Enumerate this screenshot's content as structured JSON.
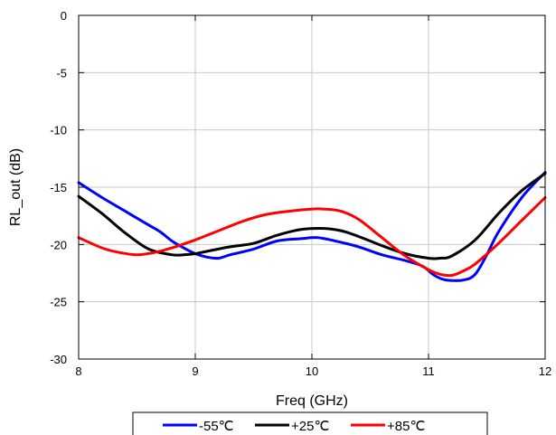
{
  "chart_data": {
    "type": "line",
    "title": "",
    "xlabel": "Freq (GHz)",
    "ylabel": "RL_out (dB)",
    "xlim": [
      8,
      12
    ],
    "ylim": [
      -30,
      0
    ],
    "xticks": [
      8,
      9,
      10,
      11,
      12
    ],
    "yticks": [
      0,
      -5,
      -10,
      -15,
      -20,
      -25,
      -30
    ],
    "xtick_labels": [
      "8",
      "9",
      "10",
      "11",
      "12"
    ],
    "ytick_labels": [
      "0",
      "-5",
      "-10",
      "-15",
      "-20",
      "-25",
      "-30"
    ],
    "grid": true,
    "legend": "bottom, below axis label",
    "series": [
      {
        "name": "-55℃",
        "color": "#0000ff",
        "x": [
          8.0,
          8.2,
          8.4,
          8.6,
          8.7,
          8.8,
          8.9,
          9.0,
          9.1,
          9.2,
          9.3,
          9.5,
          9.7,
          9.9,
          10.05,
          10.2,
          10.4,
          10.6,
          10.8,
          10.95,
          11.05,
          11.15,
          11.3,
          11.4,
          11.5,
          11.6,
          11.8,
          12.0
        ],
        "y": [
          -14.6,
          -15.9,
          -17.1,
          -18.3,
          -18.9,
          -19.7,
          -20.3,
          -20.8,
          -21.1,
          -21.2,
          -20.9,
          -20.4,
          -19.7,
          -19.5,
          -19.4,
          -19.7,
          -20.2,
          -20.9,
          -21.4,
          -21.9,
          -22.7,
          -23.1,
          -23.1,
          -22.6,
          -20.9,
          -18.9,
          -15.9,
          -13.7
        ]
      },
      {
        "name": "+25℃",
        "color": "#000000",
        "x": [
          8.0,
          8.2,
          8.4,
          8.6,
          8.8,
          8.9,
          9.0,
          9.1,
          9.3,
          9.5,
          9.7,
          9.9,
          10.1,
          10.25,
          10.4,
          10.6,
          10.8,
          11.0,
          11.1,
          11.2,
          11.4,
          11.6,
          11.8,
          12.0
        ],
        "y": [
          -15.8,
          -17.3,
          -19.0,
          -20.4,
          -20.9,
          -20.9,
          -20.8,
          -20.6,
          -20.2,
          -19.9,
          -19.2,
          -18.7,
          -18.6,
          -18.8,
          -19.3,
          -20.1,
          -20.8,
          -21.2,
          -21.2,
          -21.0,
          -19.6,
          -17.3,
          -15.3,
          -13.8
        ]
      },
      {
        "name": "+85℃",
        "color": "#ff0000",
        "x": [
          8.0,
          8.2,
          8.35,
          8.5,
          8.65,
          8.8,
          9.0,
          9.2,
          9.4,
          9.6,
          9.8,
          10.0,
          10.1,
          10.25,
          10.4,
          10.6,
          10.8,
          11.0,
          11.1,
          11.2,
          11.3,
          11.4,
          11.6,
          11.8,
          12.0
        ],
        "y": [
          -19.4,
          -20.3,
          -20.7,
          -20.9,
          -20.7,
          -20.3,
          -19.6,
          -18.8,
          -18.0,
          -17.4,
          -17.1,
          -16.9,
          -16.9,
          -17.1,
          -17.8,
          -19.4,
          -21.0,
          -22.2,
          -22.6,
          -22.7,
          -22.3,
          -21.7,
          -19.9,
          -17.9,
          -15.9
        ]
      }
    ]
  }
}
